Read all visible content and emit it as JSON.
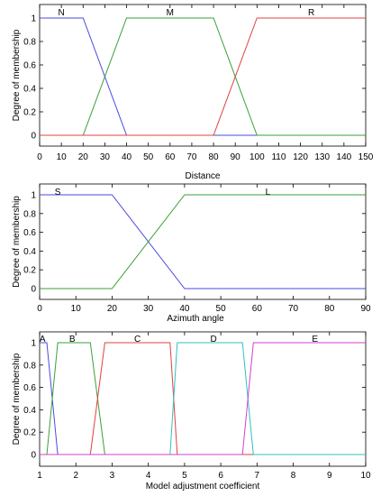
{
  "chart_data": [
    {
      "type": "line",
      "xlabel": "Distance",
      "ylabel": "Degree of membership",
      "xlim": [
        0,
        150
      ],
      "ylim": [
        0,
        1
      ],
      "xticks": [
        0,
        10,
        20,
        30,
        40,
        50,
        60,
        70,
        80,
        90,
        100,
        110,
        120,
        130,
        140,
        150
      ],
      "yticks": [
        0,
        0.2,
        0.4,
        0.6,
        0.8,
        1
      ],
      "grid": false,
      "series": [
        {
          "name": "N",
          "color": "#4a4ae0",
          "label_x": 10,
          "x": [
            0,
            20,
            40,
            150
          ],
          "y": [
            1,
            1,
            0,
            0
          ]
        },
        {
          "name": "M",
          "color": "#3aa03a",
          "label_x": 60,
          "x": [
            0,
            20,
            40,
            80,
            100,
            150
          ],
          "y": [
            0,
            0,
            1,
            1,
            0,
            0
          ]
        },
        {
          "name": "R",
          "color": "#e04040",
          "label_x": 125,
          "x": [
            0,
            80,
            100,
            150
          ],
          "y": [
            0,
            0,
            1,
            1
          ]
        }
      ]
    },
    {
      "type": "line",
      "xlabel": "Azimuth angle",
      "ylabel": "Degree of membership",
      "xlim": [
        0,
        90
      ],
      "ylim": [
        0,
        1
      ],
      "xticks": [
        0,
        10,
        20,
        30,
        40,
        50,
        60,
        70,
        80,
        90
      ],
      "yticks": [
        0,
        0.2,
        0.4,
        0.6,
        0.8,
        1
      ],
      "grid": false,
      "series": [
        {
          "name": "S",
          "color": "#4a4ae0",
          "label_x": 5,
          "x": [
            0,
            20,
            40,
            90
          ],
          "y": [
            1,
            1,
            0,
            0
          ]
        },
        {
          "name": "L",
          "color": "#3aa03a",
          "label_x": 63,
          "x": [
            0,
            20,
            40,
            90
          ],
          "y": [
            0,
            0,
            1,
            1
          ]
        }
      ]
    },
    {
      "type": "line",
      "xlabel": "Model adjustment coefficient",
      "ylabel": "Degree of membership",
      "xlim": [
        1,
        10
      ],
      "ylim": [
        0,
        1
      ],
      "xticks": [
        1,
        2,
        3,
        4,
        5,
        6,
        7,
        8,
        9,
        10
      ],
      "yticks": [
        0,
        0.2,
        0.4,
        0.6,
        0.8,
        1
      ],
      "grid": false,
      "series": [
        {
          "name": "A",
          "color": "#4a4ae0",
          "label_x": 1.08,
          "x": [
            1,
            1.2,
            1.5,
            10
          ],
          "y": [
            1,
            1,
            0,
            0
          ]
        },
        {
          "name": "B",
          "color": "#3aa03a",
          "label_x": 1.9,
          "x": [
            1,
            1.2,
            1.5,
            2.4,
            2.8,
            10
          ],
          "y": [
            0,
            0,
            1,
            1,
            0,
            0
          ]
        },
        {
          "name": "C",
          "color": "#e04040",
          "label_x": 3.7,
          "x": [
            1,
            2.4,
            2.8,
            4.6,
            4.8,
            10
          ],
          "y": [
            0,
            0,
            1,
            1,
            0,
            0
          ]
        },
        {
          "name": "D",
          "color": "#30c0c0",
          "label_x": 5.8,
          "x": [
            1,
            4.6,
            4.8,
            6.6,
            6.9,
            10
          ],
          "y": [
            0,
            0,
            1,
            1,
            0,
            0
          ]
        },
        {
          "name": "E",
          "color": "#d040d0",
          "label_x": 8.6,
          "x": [
            1,
            6.6,
            6.9,
            10
          ],
          "y": [
            0,
            0,
            1,
            1
          ]
        }
      ]
    }
  ]
}
